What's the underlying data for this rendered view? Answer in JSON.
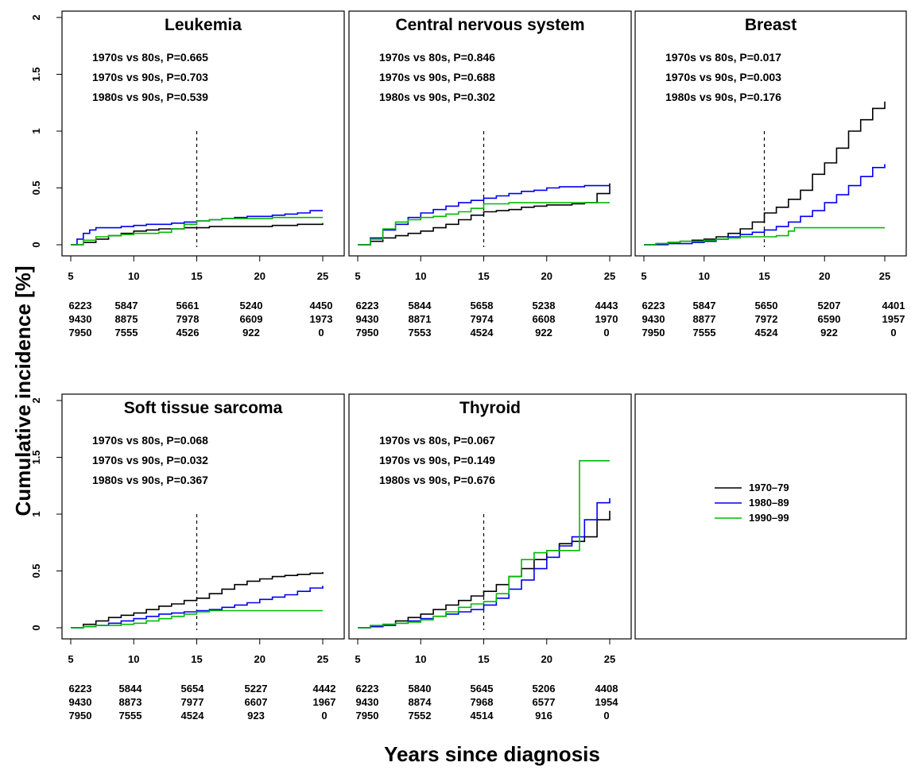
{
  "figure": {
    "ylabel": "Cumulative incidence [%]",
    "xlabel": "Years since diagnosis"
  },
  "legend": {
    "placement": "center of sixth panel",
    "entries": [
      {
        "label": "1970–79",
        "color": "#000000"
      },
      {
        "label": "1980–89",
        "color": "#0000ee"
      },
      {
        "label": "1990–99",
        "color": "#00bb00"
      }
    ]
  },
  "chart_data": [
    {
      "type": "line",
      "step": true,
      "title": "Leukemia",
      "xlim": [
        5,
        25
      ],
      "ylim": [
        0,
        2
      ],
      "x_ticks": [
        5,
        10,
        15,
        20,
        25
      ],
      "y_ticks": [
        "0",
        "0.5",
        "1",
        "1.5",
        "2"
      ],
      "reference_line_x": 15,
      "annotations": [
        "1970s vs 80s, P=0.665",
        "1970s vs 90s, P=0.703",
        "1980s vs 90s, P=0.539"
      ],
      "series": [
        {
          "color": "#000000",
          "x": [
            5,
            6,
            7,
            8,
            9,
            10,
            11,
            12,
            13,
            14,
            15,
            16,
            17,
            18,
            19,
            20,
            21,
            22,
            23,
            24,
            25
          ],
          "y": [
            0,
            0.02,
            0.05,
            0.08,
            0.1,
            0.12,
            0.13,
            0.14,
            0.14,
            0.15,
            0.15,
            0.16,
            0.16,
            0.16,
            0.16,
            0.16,
            0.17,
            0.17,
            0.18,
            0.18,
            0.19
          ]
        },
        {
          "color": "#0000ee",
          "x": [
            5,
            5.5,
            6,
            6.5,
            7,
            8,
            9,
            10,
            11,
            12,
            13,
            14,
            15,
            16,
            17,
            18,
            19,
            20,
            21,
            22,
            23,
            24,
            25
          ],
          "y": [
            0,
            0.05,
            0.1,
            0.13,
            0.15,
            0.15,
            0.16,
            0.17,
            0.18,
            0.18,
            0.19,
            0.2,
            0.21,
            0.22,
            0.23,
            0.24,
            0.25,
            0.25,
            0.26,
            0.27,
            0.28,
            0.3,
            0.3
          ]
        },
        {
          "color": "#00bb00",
          "x": [
            5,
            6,
            7,
            8,
            9,
            10,
            11,
            12,
            13,
            14,
            15,
            16,
            17,
            18,
            19,
            20,
            21,
            22,
            23,
            24,
            25
          ],
          "y": [
            0,
            0.04,
            0.07,
            0.08,
            0.09,
            0.1,
            0.1,
            0.11,
            0.14,
            0.18,
            0.21,
            0.22,
            0.23,
            0.23,
            0.23,
            0.23,
            0.24,
            0.24,
            0.24,
            0.24,
            0.24
          ]
        }
      ],
      "risk_table": [
        [
          "6223",
          "5847",
          "5661",
          "5240",
          "4450"
        ],
        [
          "9430",
          "8875",
          "7978",
          "6609",
          "1973"
        ],
        [
          "7950",
          "7555",
          "4526",
          "922",
          "0"
        ]
      ]
    },
    {
      "type": "line",
      "step": true,
      "title": "Central nervous system",
      "xlim": [
        5,
        25
      ],
      "ylim": [
        0,
        2
      ],
      "x_ticks": [
        5,
        10,
        15,
        20,
        25
      ],
      "y_ticks": [
        "0",
        "0.5",
        "1",
        "1.5",
        "2"
      ],
      "reference_line_x": 15,
      "annotations": [
        "1970s vs 80s, P=0.846",
        "1970s vs 90s, P=0.688",
        "1980s vs 90s, P=0.302"
      ],
      "series": [
        {
          "color": "#000000",
          "x": [
            5,
            6,
            7,
            8,
            9,
            10,
            11,
            12,
            13,
            14,
            15,
            16,
            17,
            18,
            19,
            20,
            21,
            22,
            23,
            24,
            25
          ],
          "y": [
            0,
            0.03,
            0.06,
            0.08,
            0.1,
            0.12,
            0.15,
            0.18,
            0.22,
            0.26,
            0.29,
            0.3,
            0.31,
            0.33,
            0.34,
            0.35,
            0.35,
            0.36,
            0.37,
            0.45,
            0.54
          ]
        },
        {
          "color": "#0000ee",
          "x": [
            5,
            6,
            7,
            8,
            9,
            10,
            11,
            12,
            13,
            14,
            15,
            16,
            17,
            18,
            19,
            20,
            21,
            22,
            23,
            24,
            25
          ],
          "y": [
            0,
            0.06,
            0.13,
            0.18,
            0.24,
            0.28,
            0.31,
            0.34,
            0.37,
            0.39,
            0.41,
            0.43,
            0.45,
            0.47,
            0.48,
            0.5,
            0.51,
            0.51,
            0.52,
            0.52,
            0.52
          ]
        },
        {
          "color": "#00bb00",
          "x": [
            5,
            6,
            7,
            8,
            9,
            10,
            11,
            12,
            13,
            14,
            15,
            16,
            17,
            18,
            19,
            20,
            21,
            22,
            23,
            24,
            25
          ],
          "y": [
            0,
            0.05,
            0.14,
            0.2,
            0.22,
            0.24,
            0.25,
            0.27,
            0.29,
            0.32,
            0.36,
            0.36,
            0.37,
            0.37,
            0.37,
            0.37,
            0.37,
            0.37,
            0.37,
            0.37,
            0.37
          ]
        }
      ],
      "risk_table": [
        [
          "6223",
          "5844",
          "5658",
          "5238",
          "4443"
        ],
        [
          "9430",
          "8871",
          "7974",
          "6608",
          "1970"
        ],
        [
          "7950",
          "7553",
          "4524",
          "922",
          "0"
        ]
      ]
    },
    {
      "type": "line",
      "step": true,
      "title": "Breast",
      "xlim": [
        5,
        25
      ],
      "ylim": [
        0,
        2
      ],
      "x_ticks": [
        5,
        10,
        15,
        20,
        25
      ],
      "y_ticks": [
        "0",
        "0.5",
        "1",
        "1.5",
        "2"
      ],
      "reference_line_x": 15,
      "annotations": [
        "1970s vs 80s, P=0.017",
        "1970s vs 90s, P=0.003",
        "1980s vs 90s, P=0.176"
      ],
      "series": [
        {
          "color": "#000000",
          "x": [
            5,
            6,
            7,
            8,
            9,
            10,
            11,
            12,
            13,
            14,
            15,
            16,
            17,
            18,
            19,
            20,
            21,
            22,
            23,
            24,
            25
          ],
          "y": [
            0,
            0.01,
            0.02,
            0.03,
            0.04,
            0.05,
            0.07,
            0.1,
            0.14,
            0.2,
            0.28,
            0.33,
            0.4,
            0.48,
            0.62,
            0.72,
            0.85,
            1.0,
            1.1,
            1.2,
            1.26
          ]
        },
        {
          "color": "#0000ee",
          "x": [
            5,
            6,
            7,
            8,
            9,
            10,
            11,
            12,
            13,
            14,
            15,
            16,
            17,
            18,
            19,
            20,
            21,
            22,
            23,
            24,
            25
          ],
          "y": [
            0,
            0,
            0.01,
            0.01,
            0.02,
            0.03,
            0.05,
            0.07,
            0.09,
            0.11,
            0.13,
            0.16,
            0.2,
            0.25,
            0.3,
            0.37,
            0.44,
            0.52,
            0.6,
            0.68,
            0.71
          ]
        },
        {
          "color": "#00bb00",
          "x": [
            5,
            6,
            7,
            8,
            9,
            10,
            11,
            12,
            13,
            14,
            15,
            16,
            17,
            17.5,
            18,
            19,
            20,
            21,
            22,
            23,
            24,
            25
          ],
          "y": [
            0,
            0.01,
            0.02,
            0.03,
            0.03,
            0.04,
            0.05,
            0.06,
            0.07,
            0.07,
            0.07,
            0.08,
            0.12,
            0.15,
            0.15,
            0.15,
            0.15,
            0.15,
            0.15,
            0.15,
            0.15,
            0.15
          ]
        }
      ],
      "risk_table": [
        [
          "6223",
          "5847",
          "5650",
          "5207",
          "4401"
        ],
        [
          "9430",
          "8877",
          "7972",
          "6590",
          "1957"
        ],
        [
          "7950",
          "7555",
          "4524",
          "922",
          "0"
        ]
      ]
    },
    {
      "type": "line",
      "step": true,
      "title": "Soft tissue sarcoma",
      "xlim": [
        5,
        25
      ],
      "ylim": [
        0,
        2
      ],
      "x_ticks": [
        5,
        10,
        15,
        20,
        25
      ],
      "y_ticks": [
        "0",
        "0.5",
        "1",
        "1.5",
        "2"
      ],
      "reference_line_x": 15,
      "annotations": [
        "1970s vs 80s, P=0.068",
        "1970s vs 90s, P=0.032",
        "1980s vs 90s, P=0.367"
      ],
      "series": [
        {
          "color": "#000000",
          "x": [
            5,
            6,
            7,
            8,
            9,
            10,
            11,
            12,
            13,
            14,
            15,
            16,
            17,
            18,
            19,
            20,
            21,
            22,
            23,
            24,
            25
          ],
          "y": [
            0,
            0.03,
            0.06,
            0.09,
            0.11,
            0.13,
            0.16,
            0.19,
            0.21,
            0.24,
            0.26,
            0.3,
            0.34,
            0.38,
            0.41,
            0.43,
            0.45,
            0.46,
            0.47,
            0.48,
            0.49
          ]
        },
        {
          "color": "#0000ee",
          "x": [
            5,
            6,
            7,
            8,
            9,
            10,
            11,
            12,
            13,
            14,
            15,
            16,
            17,
            18,
            19,
            20,
            21,
            22,
            23,
            24,
            25
          ],
          "y": [
            0,
            0.01,
            0.02,
            0.04,
            0.06,
            0.08,
            0.1,
            0.12,
            0.13,
            0.14,
            0.15,
            0.16,
            0.18,
            0.2,
            0.22,
            0.25,
            0.27,
            0.29,
            0.32,
            0.35,
            0.37
          ]
        },
        {
          "color": "#00bb00",
          "x": [
            5,
            6,
            7,
            8,
            9,
            10,
            11,
            12,
            13,
            14,
            15,
            16,
            17,
            18,
            19,
            20,
            21,
            22,
            23,
            24,
            25
          ],
          "y": [
            0,
            0.01,
            0.02,
            0.02,
            0.03,
            0.04,
            0.06,
            0.08,
            0.1,
            0.12,
            0.14,
            0.15,
            0.15,
            0.15,
            0.15,
            0.15,
            0.15,
            0.15,
            0.15,
            0.15,
            0.15
          ]
        }
      ],
      "risk_table": [
        [
          "6223",
          "5844",
          "5654",
          "5227",
          "4442"
        ],
        [
          "9430",
          "8873",
          "7977",
          "6607",
          "1967"
        ],
        [
          "7950",
          "7555",
          "4524",
          "923",
          "0"
        ]
      ]
    },
    {
      "type": "line",
      "step": true,
      "title": "Thyroid",
      "xlim": [
        5,
        25
      ],
      "ylim": [
        0,
        2
      ],
      "x_ticks": [
        5,
        10,
        15,
        20,
        25
      ],
      "y_ticks": [
        "0",
        "0.5",
        "1",
        "1.5",
        "2"
      ],
      "reference_line_x": 15,
      "annotations": [
        "1970s vs 80s, P=0.067",
        "1970s vs 90s, P=0.149",
        "1980s vs 90s, P=0.676"
      ],
      "series": [
        {
          "color": "#000000",
          "x": [
            5,
            6,
            7,
            8,
            9,
            10,
            11,
            12,
            13,
            14,
            15,
            16,
            17,
            18,
            19,
            20,
            21,
            22,
            23,
            24,
            25
          ],
          "y": [
            0,
            0.01,
            0.03,
            0.06,
            0.09,
            0.12,
            0.16,
            0.2,
            0.24,
            0.28,
            0.32,
            0.38,
            0.45,
            0.52,
            0.6,
            0.68,
            0.74,
            0.76,
            0.8,
            0.95,
            1.03
          ]
        },
        {
          "color": "#0000ee",
          "x": [
            5,
            6,
            7,
            8,
            9,
            10,
            11,
            12,
            13,
            14,
            15,
            16,
            17,
            18,
            19,
            20,
            21,
            22,
            23,
            24,
            25
          ],
          "y": [
            0,
            0.01,
            0.02,
            0.04,
            0.06,
            0.08,
            0.1,
            0.12,
            0.14,
            0.16,
            0.2,
            0.26,
            0.34,
            0.42,
            0.52,
            0.62,
            0.72,
            0.8,
            0.95,
            1.1,
            1.14
          ]
        },
        {
          "color": "#00bb00",
          "x": [
            5,
            6,
            7,
            8,
            9,
            10,
            11,
            12,
            13,
            14,
            15,
            16,
            17,
            18,
            19,
            20,
            21,
            22,
            22.6,
            23,
            24,
            25
          ],
          "y": [
            0,
            0.02,
            0.03,
            0.04,
            0.05,
            0.07,
            0.1,
            0.14,
            0.18,
            0.21,
            0.23,
            0.3,
            0.45,
            0.6,
            0.66,
            0.68,
            0.68,
            0.68,
            1.47,
            1.47,
            1.47,
            1.47
          ]
        }
      ],
      "risk_table": [
        [
          "6223",
          "5840",
          "5645",
          "5206",
          "4408"
        ],
        [
          "9430",
          "8874",
          "7968",
          "6577",
          "1954"
        ],
        [
          "7950",
          "7552",
          "4514",
          "916",
          "0"
        ]
      ]
    }
  ]
}
